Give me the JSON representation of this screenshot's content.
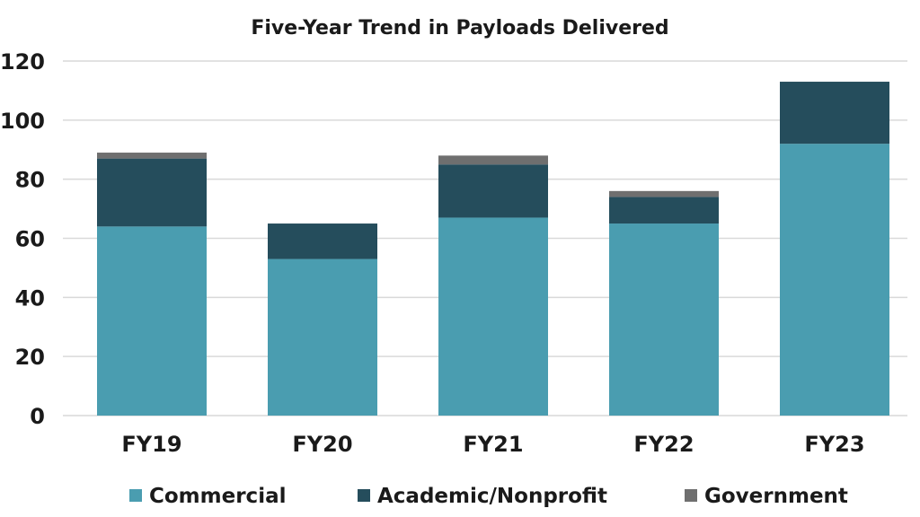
{
  "chart_data": {
    "type": "bar",
    "stacked": true,
    "title": "Five-Year Trend in Payloads Delivered",
    "xlabel": "",
    "ylabel": "",
    "categories": [
      "FY19",
      "FY20",
      "FY21",
      "FY22",
      "FY23"
    ],
    "series": [
      {
        "name": "Commercial",
        "values": [
          64,
          53,
          67,
          65,
          92
        ],
        "color": "#4a9db0"
      },
      {
        "name": "Academic/Nonprofit",
        "values": [
          23,
          12,
          18,
          9,
          21
        ],
        "color": "#254d5c"
      },
      {
        "name": "Government",
        "values": [
          2,
          0,
          3,
          2,
          0
        ],
        "color": "#6f6f6f"
      }
    ],
    "ylim": [
      0,
      120
    ],
    "yticks": [
      0,
      20,
      40,
      60,
      80,
      100,
      120
    ],
    "grid": true,
    "legend_position": "bottom"
  }
}
